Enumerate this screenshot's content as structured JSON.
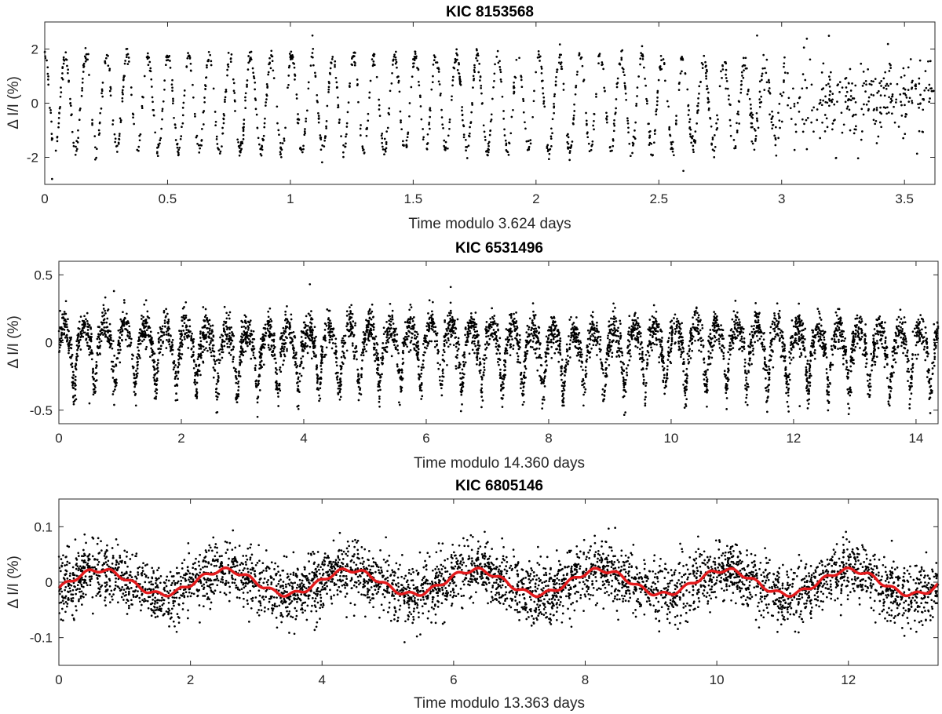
{
  "figure": {
    "background": "#ffffff",
    "axis_color": "#262626",
    "point_color": "#000000"
  },
  "chart_data": [
    {
      "type": "scatter",
      "title": "KIC 8153568",
      "xlabel": "Time modulo 3.624 days",
      "ylabel": "Δ I/I (%)",
      "xlim": [
        0,
        3.624
      ],
      "ylim": [
        -3,
        3
      ],
      "xticks": [
        0,
        0.5,
        1,
        1.5,
        2,
        2.5,
        3,
        3.5
      ],
      "xtick_labels": [
        "0",
        "0.5",
        "1",
        "1.5",
        "2",
        "2.5",
        "3",
        "3.5"
      ],
      "yticks": [
        -2,
        0,
        2
      ],
      "ytick_labels": [
        "-2",
        "0",
        "2"
      ],
      "grid": false,
      "legend": "none",
      "series": [
        {
          "color": "#000000",
          "marker": "dot",
          "signal": "sinusoid",
          "period_days": 0.0838,
          "amplitude": 1.75,
          "amplitude_trend": "decreasing beyond 2.5 d, scattered between -2.7 and 2.5 near 3.0–3.6 d",
          "noise_sd": 0.15,
          "n_points": 1700,
          "outliers": [
            [
              0.03,
              -2.8
            ],
            [
              1.09,
              2.5
            ],
            [
              2.9,
              2.5
            ],
            [
              2.6,
              -2.5
            ]
          ]
        }
      ]
    },
    {
      "type": "scatter",
      "title": "KIC 6531496",
      "xlabel": "Time modulo 14.360 days",
      "ylabel": "Δ I/I (%)",
      "xlim": [
        0,
        14.36
      ],
      "ylim": [
        -0.6,
        0.6
      ],
      "xticks": [
        0,
        2,
        4,
        6,
        8,
        10,
        12,
        14
      ],
      "xtick_labels": [
        "0",
        "2",
        "4",
        "6",
        "8",
        "10",
        "12",
        "14"
      ],
      "yticks": [
        -0.5,
        0,
        0.5
      ],
      "ytick_labels": [
        "-0.5",
        "0",
        "0.5"
      ],
      "grid": false,
      "legend": "none",
      "series": [
        {
          "color": "#000000",
          "marker": "dot",
          "signal": "peaked oscillation",
          "period_days": 0.333,
          "amplitude_up": 0.12,
          "amplitude_down": 0.35,
          "noise_sd": 0.07,
          "n_points": 5200,
          "outliers": [
            [
              0.9,
              0.38
            ],
            [
              4.1,
              0.43
            ],
            [
              6.4,
              0.41
            ],
            [
              0.5,
              -0.45
            ],
            [
              12.1,
              -0.47
            ]
          ]
        }
      ]
    },
    {
      "type": "scatter",
      "title": "KIC 6805146",
      "xlabel": "Time modulo 13.363 days",
      "ylabel": "Δ I/I (%)",
      "xlim": [
        0,
        13.363
      ],
      "ylim": [
        -0.15,
        0.15
      ],
      "xticks": [
        0,
        2,
        4,
        6,
        8,
        10,
        12
      ],
      "xtick_labels": [
        "0",
        "2",
        "4",
        "6",
        "8",
        "10",
        "12"
      ],
      "yticks": [
        -0.1,
        0,
        0.1
      ],
      "ytick_labels": [
        "-0.1",
        "0",
        "0.1"
      ],
      "grid": false,
      "legend": "none",
      "series": [
        {
          "color": "#000000",
          "marker": "dot",
          "signal": "sinusoid",
          "period_days": 1.9,
          "amplitude": 0.022,
          "noise_sd": 0.027,
          "n_points": 4200
        },
        {
          "color": "#e31a1c",
          "marker": "line",
          "signal": "smoothed fit",
          "period_days": 1.9,
          "amplitude": 0.022,
          "wobble": 0.004
        }
      ]
    }
  ]
}
